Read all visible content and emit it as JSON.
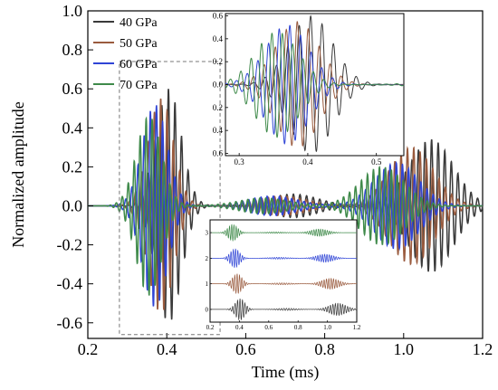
{
  "chart_data": {
    "type": "line",
    "xlabel": "Time (ms)",
    "ylabel": "Normalized amplitude",
    "xlim": [
      0.2,
      1.2
    ],
    "ylim": [
      -0.68,
      1.0
    ],
    "xticks": [
      "0.2",
      "0.4",
      "0.6",
      "0.8",
      "1.0",
      "1.2"
    ],
    "yticks": [
      "-0.6",
      "-0.4",
      "-0.2",
      "0.0",
      "0.2",
      "0.4",
      "0.6",
      "0.8",
      "1.0"
    ],
    "legend_position": "top-left",
    "series": [
      {
        "name": "40 GPa",
        "color": "#3a3a3a",
        "shift": 0.0,
        "a1": 0.6,
        "a2": 0.34,
        "a3": 0.06
      },
      {
        "name": "50 GPa",
        "color": "#9a5b3e",
        "shift": -0.02,
        "a1": 0.55,
        "a2": 0.3,
        "a3": 0.05
      },
      {
        "name": "60 GPa",
        "color": "#2f44d6",
        "shift": -0.035,
        "a1": 0.52,
        "a2": 0.22,
        "a3": 0.05
      },
      {
        "name": "70 GPa",
        "color": "#3f8a4a",
        "shift": -0.05,
        "a1": 0.46,
        "a2": 0.2,
        "a3": 0.04
      }
    ],
    "selection_box": {
      "x0": 0.28,
      "x1": 0.535,
      "y0": -0.66,
      "y1": 0.74
    },
    "inset_zoom": {
      "xlim": [
        0.28,
        0.54
      ],
      "ylim": [
        -0.62,
        0.62
      ],
      "xticks": [
        "0.3",
        "0.4",
        "0.5"
      ],
      "yticks": [
        "0.6",
        "0.4",
        "0.2",
        "0.0",
        "0.2",
        "0.4",
        "0.6"
      ]
    },
    "inset_offset": {
      "xlim": [
        0.2,
        1.2
      ],
      "ylim": [
        -0.5,
        3.5
      ],
      "xticks": [
        "0.2",
        "0.4",
        "0.6",
        "0.8",
        "1.0",
        "1.2"
      ],
      "yticks": [
        "0",
        "1",
        "2",
        "3"
      ],
      "offsets": [
        0,
        1,
        2,
        3
      ]
    }
  }
}
